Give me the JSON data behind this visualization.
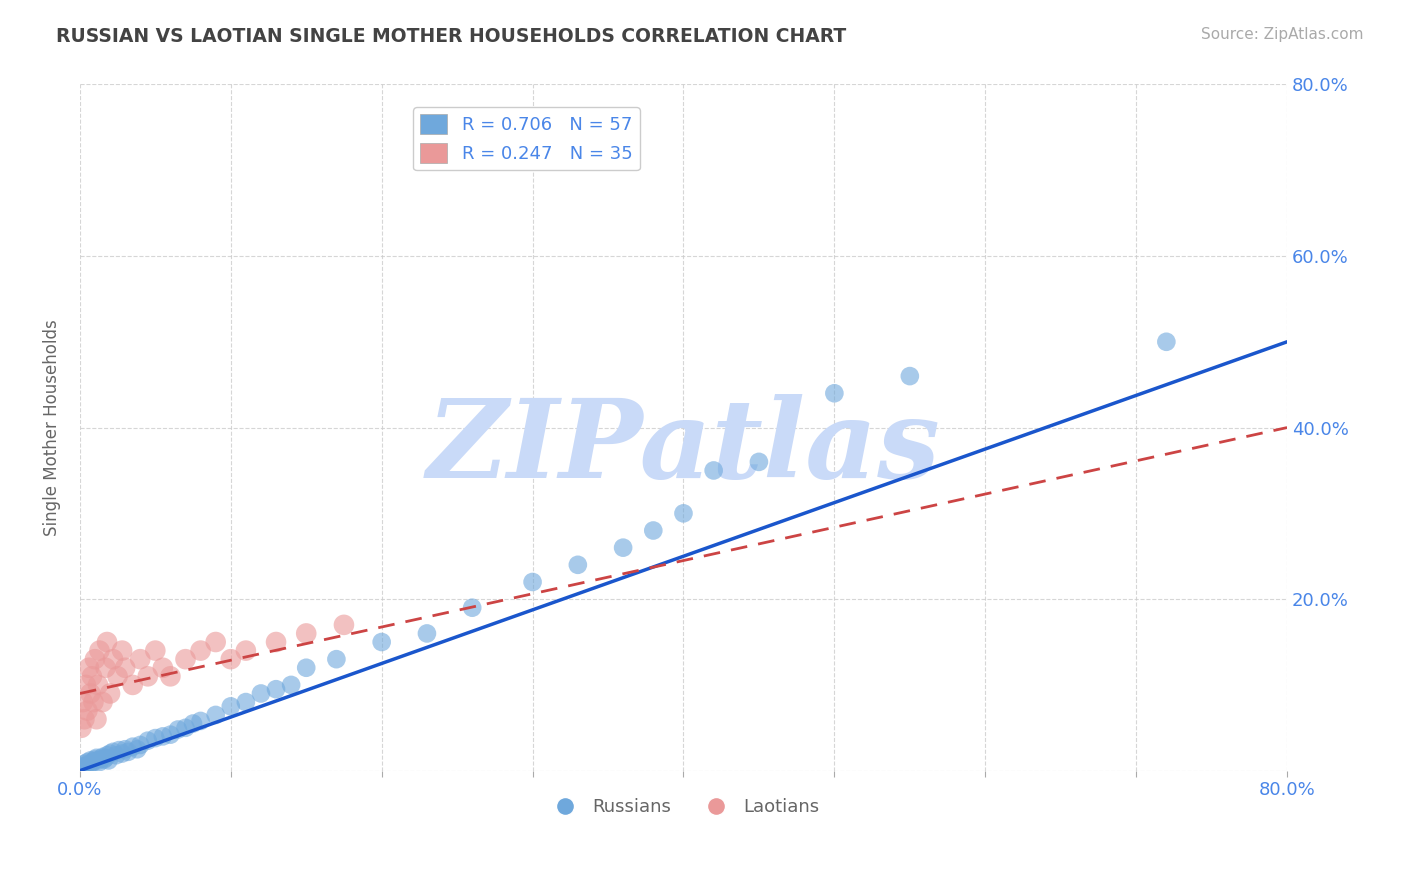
{
  "title": "RUSSIAN VS LAOTIAN SINGLE MOTHER HOUSEHOLDS CORRELATION CHART",
  "source": "Source: ZipAtlas.com",
  "ylabel": "Single Mother Households",
  "xlim": [
    0.0,
    0.8
  ],
  "ylim": [
    0.0,
    0.8
  ],
  "russian_R": 0.706,
  "russian_N": 57,
  "laotian_R": 0.247,
  "laotian_N": 35,
  "russian_color": "#6fa8dc",
  "laotian_color": "#ea9999",
  "trendline_russian_color": "#1a56cc",
  "trendline_laotian_color": "#cc4444",
  "watermark_text": "ZIPatlas",
  "watermark_color": "#c9daf8",
  "background_color": "#ffffff",
  "grid_color": "#cccccc",
  "title_color": "#434343",
  "label_color": "#4a86e8",
  "source_color": "#aaaaaa",
  "ylabel_color": "#666666",
  "russians_x": [
    0.002,
    0.003,
    0.004,
    0.005,
    0.006,
    0.007,
    0.008,
    0.009,
    0.01,
    0.011,
    0.012,
    0.013,
    0.014,
    0.015,
    0.016,
    0.017,
    0.018,
    0.019,
    0.02,
    0.022,
    0.024,
    0.026,
    0.028,
    0.03,
    0.032,
    0.035,
    0.038,
    0.04,
    0.045,
    0.05,
    0.055,
    0.06,
    0.065,
    0.07,
    0.075,
    0.08,
    0.09,
    0.1,
    0.11,
    0.12,
    0.13,
    0.14,
    0.15,
    0.17,
    0.2,
    0.23,
    0.26,
    0.3,
    0.33,
    0.36,
    0.38,
    0.4,
    0.42,
    0.45,
    0.5,
    0.55,
    0.72
  ],
  "russians_y": [
    0.005,
    0.008,
    0.006,
    0.01,
    0.007,
    0.012,
    0.009,
    0.011,
    0.013,
    0.015,
    0.012,
    0.01,
    0.014,
    0.016,
    0.013,
    0.015,
    0.018,
    0.012,
    0.02,
    0.022,
    0.018,
    0.024,
    0.02,
    0.025,
    0.022,
    0.028,
    0.025,
    0.03,
    0.035,
    0.038,
    0.04,
    0.042,
    0.048,
    0.05,
    0.055,
    0.058,
    0.065,
    0.075,
    0.08,
    0.09,
    0.095,
    0.1,
    0.12,
    0.13,
    0.15,
    0.16,
    0.19,
    0.22,
    0.24,
    0.26,
    0.28,
    0.3,
    0.35,
    0.36,
    0.44,
    0.46,
    0.5
  ],
  "laotians_x": [
    0.001,
    0.002,
    0.003,
    0.004,
    0.005,
    0.006,
    0.007,
    0.008,
    0.009,
    0.01,
    0.011,
    0.012,
    0.013,
    0.015,
    0.017,
    0.018,
    0.02,
    0.022,
    0.025,
    0.028,
    0.03,
    0.035,
    0.04,
    0.045,
    0.05,
    0.055,
    0.06,
    0.07,
    0.08,
    0.09,
    0.1,
    0.11,
    0.13,
    0.15,
    0.175
  ],
  "laotians_y": [
    0.05,
    0.08,
    0.06,
    0.1,
    0.07,
    0.12,
    0.09,
    0.11,
    0.08,
    0.13,
    0.06,
    0.1,
    0.14,
    0.08,
    0.12,
    0.15,
    0.09,
    0.13,
    0.11,
    0.14,
    0.12,
    0.1,
    0.13,
    0.11,
    0.14,
    0.12,
    0.11,
    0.13,
    0.14,
    0.15,
    0.13,
    0.14,
    0.15,
    0.16,
    0.17
  ],
  "russian_trend_x": [
    0.0,
    0.8
  ],
  "russian_trend_y": [
    0.0,
    0.5
  ],
  "laotian_trend_x": [
    0.0,
    0.8
  ],
  "laotian_trend_y": [
    0.09,
    0.4
  ]
}
